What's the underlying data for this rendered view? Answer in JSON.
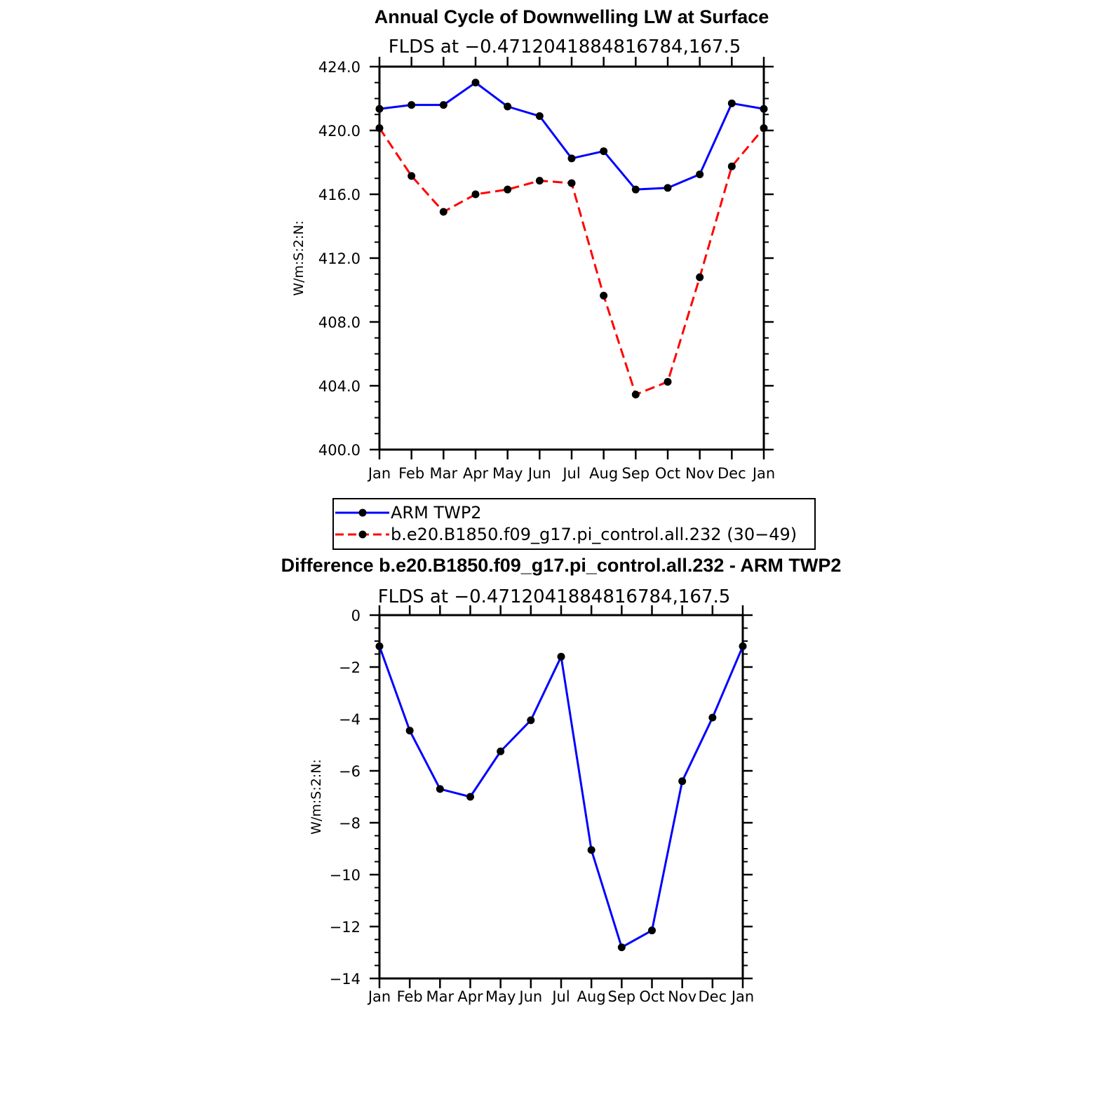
{
  "chart_data": [
    {
      "type": "line",
      "title": "Annual Cycle of Downwelling LW at Surface",
      "subtitle": "FLDS at −0.4712041884816784,167.5",
      "ylabel": "W/m:S:2:N:",
      "ylim": [
        400,
        424
      ],
      "yticks": [
        400,
        404,
        408,
        412,
        416,
        420,
        424
      ],
      "ytick_labels": [
        "400.0",
        "404.0",
        "408.0",
        "412.0",
        "416.0",
        "420.0",
        "424.0"
      ],
      "categories": [
        "Jan",
        "Feb",
        "Mar",
        "Apr",
        "May",
        "Jun",
        "Jul",
        "Aug",
        "Sep",
        "Oct",
        "Nov",
        "Dec",
        "Jan"
      ],
      "series": [
        {
          "name": "ARM TWP2",
          "color": "#0000ff",
          "dash": "solid",
          "values": [
            421.35,
            421.6,
            421.6,
            423.0,
            421.5,
            420.9,
            418.25,
            418.7,
            416.3,
            416.4,
            417.25,
            421.7,
            421.35
          ]
        },
        {
          "name": "b.e20.B1850.f09_g17.pi_control.all.232 (30−49)",
          "color": "#ff0000",
          "dash": "dashed",
          "values": [
            420.15,
            417.15,
            414.9,
            416.0,
            416.3,
            416.85,
            416.7,
            409.65,
            403.45,
            404.25,
            410.8,
            417.75,
            420.15
          ]
        }
      ],
      "legend": "bottom",
      "grid": false
    },
    {
      "type": "line",
      "title": "Difference b.e20.B1850.f09_g17.pi_control.all.232 - ARM TWP2",
      "subtitle": "FLDS at −0.4712041884816784,167.5",
      "ylabel": "W/m:S:2:N:",
      "ylim": [
        -14,
        0
      ],
      "yticks": [
        -14,
        -12,
        -10,
        -8,
        -6,
        -4,
        -2,
        0
      ],
      "ytick_labels": [
        "−14",
        "−12",
        "−10",
        "−8",
        "−6",
        "−4",
        "−2",
        "0"
      ],
      "categories": [
        "Jan",
        "Feb",
        "Mar",
        "Apr",
        "May",
        "Jun",
        "Jul",
        "Aug",
        "Sep",
        "Oct",
        "Nov",
        "Dec",
        "Jan"
      ],
      "series": [
        {
          "color": "#0000ff",
          "dash": "solid",
          "values": [
            -1.2,
            -4.45,
            -6.7,
            -7.0,
            -5.25,
            -4.05,
            -1.6,
            -9.05,
            -12.8,
            -12.15,
            -6.4,
            -3.95,
            -1.2
          ]
        }
      ],
      "legend": "none",
      "grid": false
    }
  ]
}
